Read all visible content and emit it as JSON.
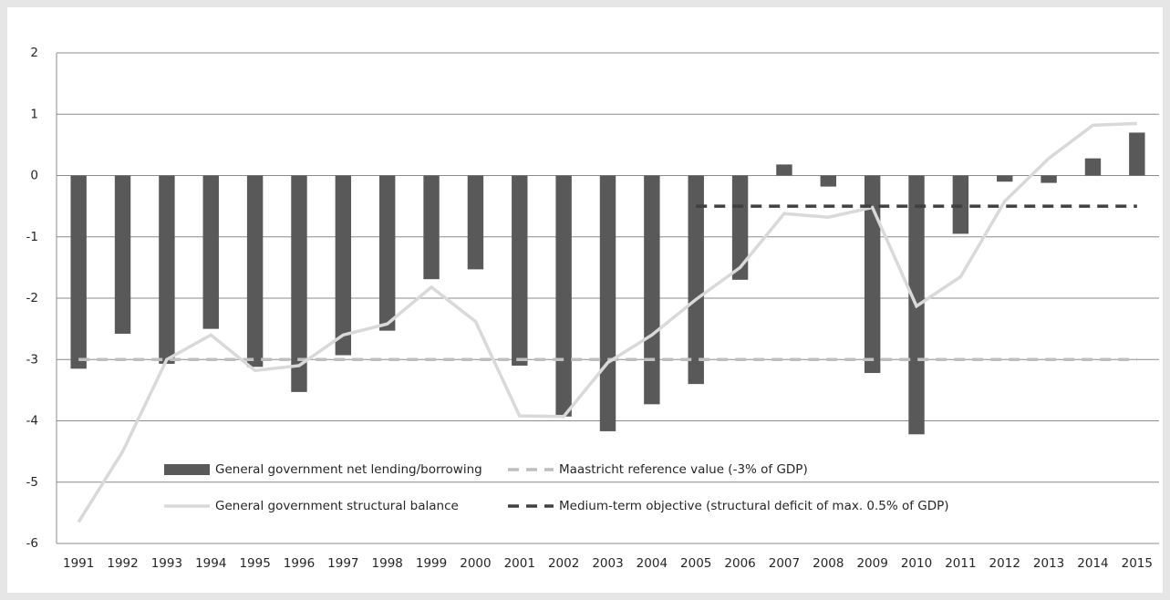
{
  "chart_data": {
    "type": "bar",
    "categories": [
      "1991",
      "1992",
      "1993",
      "1994",
      "1995",
      "1996",
      "1997",
      "1998",
      "1999",
      "2000",
      "2001",
      "2002",
      "2003",
      "2004",
      "2005",
      "2006",
      "2007",
      "2008",
      "2009",
      "2010",
      "2011",
      "2012",
      "2013",
      "2014",
      "2015"
    ],
    "series": [
      {
        "name": "General government net lending/borrowing",
        "type": "bar",
        "color": "#595959",
        "values": [
          -3.15,
          -2.58,
          -3.07,
          -2.5,
          -3.12,
          -3.53,
          -2.93,
          -2.53,
          -1.69,
          -1.53,
          -3.1,
          -3.93,
          -4.17,
          -3.73,
          -3.4,
          -1.7,
          0.18,
          -0.18,
          -3.22,
          -4.22,
          -0.95,
          -0.1,
          -0.12,
          0.28,
          0.7
        ]
      },
      {
        "name": "Maastricht reference value (-3% of GDP)",
        "type": "line",
        "dashed": true,
        "color": "#bfbfbf",
        "values": [
          -3,
          -3,
          -3,
          -3,
          -3,
          -3,
          -3,
          -3,
          -3,
          -3,
          -3,
          -3,
          -3,
          -3,
          -3,
          -3,
          -3,
          -3,
          -3,
          -3,
          -3,
          -3,
          -3,
          -3,
          -3
        ]
      },
      {
        "name": "General government structural balance",
        "type": "line",
        "dashed": false,
        "color": "#d9d9d9",
        "values": [
          -5.65,
          -4.5,
          -3.0,
          -2.6,
          -3.18,
          -3.1,
          -2.6,
          -2.42,
          -1.82,
          -2.38,
          -3.92,
          -3.93,
          -3.05,
          -2.6,
          -2.02,
          -1.5,
          -0.62,
          -0.68,
          -0.52,
          -2.13,
          -1.65,
          -0.42,
          0.28,
          0.82,
          0.85
        ]
      },
      {
        "name": "Medium-term objective (structural deficit of max. 0.5% of GDP)",
        "type": "line",
        "dashed": true,
        "color": "#404040",
        "values": [
          null,
          null,
          null,
          null,
          null,
          null,
          null,
          null,
          null,
          null,
          null,
          null,
          null,
          null,
          -0.5,
          -0.5,
          -0.5,
          -0.5,
          -0.5,
          -0.5,
          -0.5,
          -0.5,
          -0.5,
          -0.5,
          -0.5
        ]
      }
    ],
    "ylim": [
      -6,
      2
    ],
    "yticks": [
      -6,
      -5,
      -4,
      -3,
      -2,
      -1,
      0,
      1,
      2
    ],
    "grid": true
  }
}
